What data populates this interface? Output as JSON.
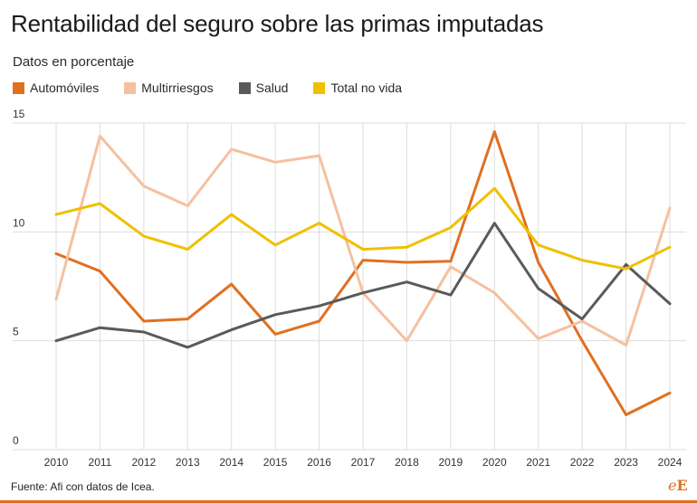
{
  "header": {
    "title": "Rentabilidad del seguro sobre las primas imputadas",
    "subtitle": "Datos en porcentaje"
  },
  "footer": {
    "source": "Fuente: Afi con datos de Icea.",
    "logo_e": "e",
    "logo_E": "E"
  },
  "colors": {
    "grid": "#dddddd",
    "tick_text": "#333333",
    "accent": "#e07020"
  },
  "chart_data": {
    "type": "line",
    "title": "Rentabilidad del seguro sobre las primas imputadas",
    "subtitle": "Datos en porcentaje",
    "xlabel": "",
    "ylabel": "",
    "x": [
      "2010",
      "2011",
      "2012",
      "2013",
      "2014",
      "2015",
      "2016",
      "2017",
      "2018",
      "2019",
      "2020",
      "2021",
      "2022",
      "2023",
      "2024"
    ],
    "ylim": [
      0,
      15
    ],
    "yticks": [
      "0",
      "5",
      "10",
      "15"
    ],
    "grid": true,
    "legend_position": "top-left",
    "series": [
      {
        "name": "Automóviles",
        "color": "#e07020",
        "values": [
          9.0,
          8.2,
          5.9,
          6.0,
          7.6,
          5.3,
          5.9,
          8.7,
          8.6,
          8.65,
          14.6,
          8.6,
          5.0,
          1.6,
          2.6
        ]
      },
      {
        "name": "Multirriesgos",
        "color": "#f5c0a0",
        "values": [
          6.9,
          14.4,
          12.1,
          11.2,
          13.8,
          13.2,
          13.5,
          7.2,
          5.0,
          8.4,
          7.2,
          5.1,
          5.9,
          4.8,
          11.1
        ]
      },
      {
        "name": "Salud",
        "color": "#5a5a5a",
        "values": [
          5.0,
          5.6,
          5.4,
          4.7,
          5.5,
          6.2,
          6.6,
          7.2,
          7.7,
          7.1,
          10.4,
          7.4,
          6.0,
          8.5,
          6.7
        ]
      },
      {
        "name": "Total no vida",
        "color": "#f0c000",
        "values": [
          10.8,
          11.3,
          9.8,
          9.2,
          10.8,
          9.4,
          10.4,
          9.2,
          9.3,
          10.2,
          12.0,
          9.4,
          8.7,
          8.3,
          9.3
        ]
      }
    ]
  }
}
